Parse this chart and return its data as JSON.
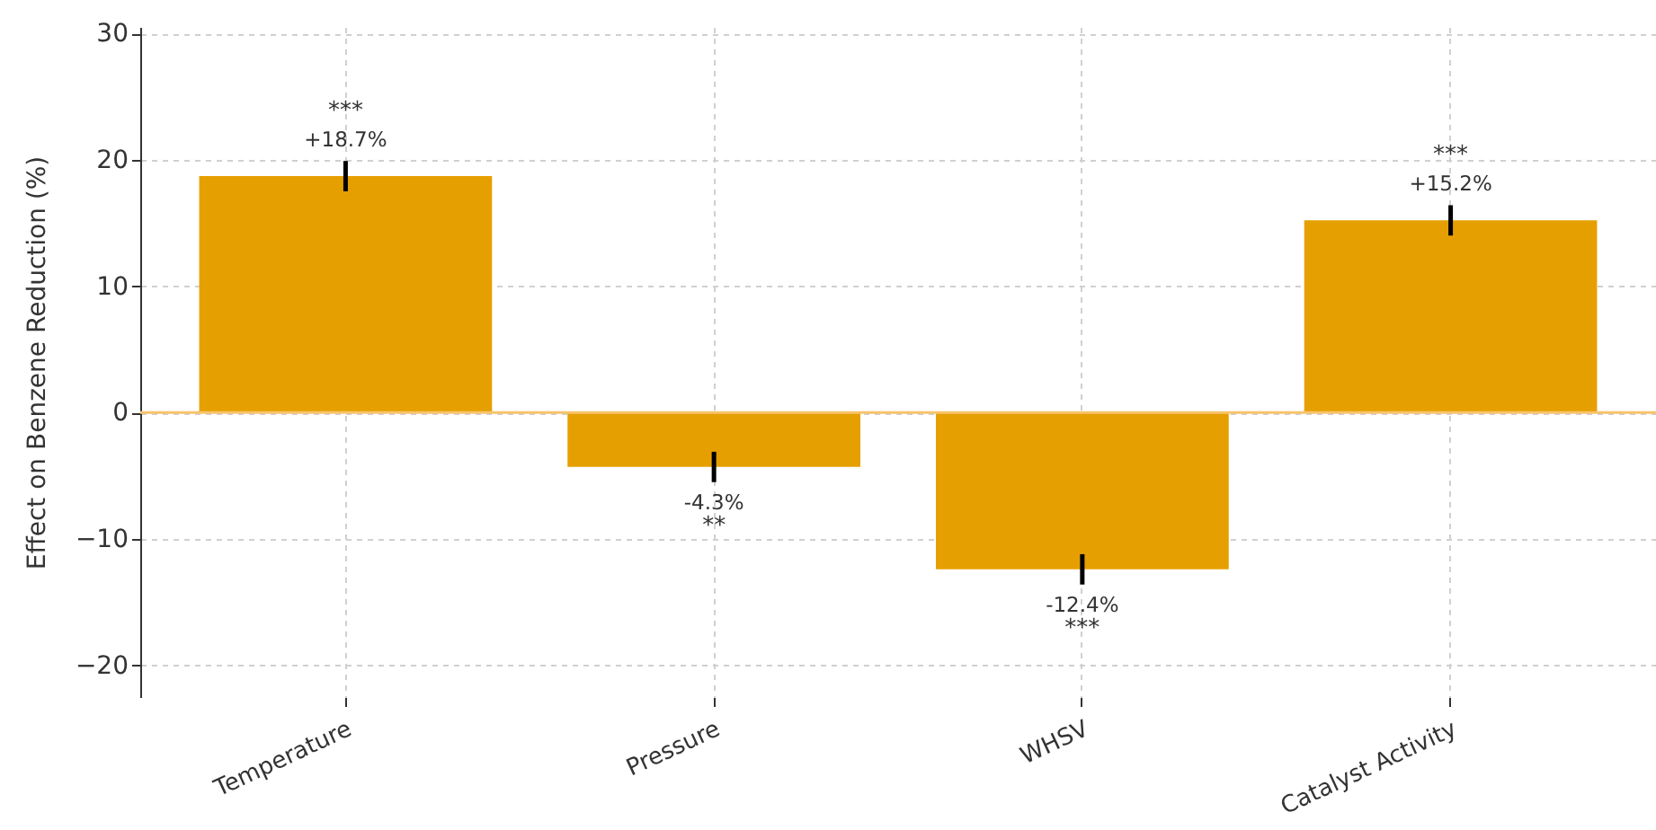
{
  "chart_data": {
    "type": "bar",
    "ylabel": "Effect on Benzene Reduction (%)",
    "categories": [
      "Temperature",
      "Pressure",
      "WHSV",
      "Catalyst Activity"
    ],
    "values": [
      18.7,
      -4.3,
      -12.4,
      15.2
    ],
    "color": "#e69f00",
    "errors": [
      1.2,
      1.2,
      1.2,
      1.2
    ],
    "value_labels": [
      "+18.7%",
      "-4.3%",
      "-12.4%",
      "+15.2%"
    ],
    "annotations": [
      "***",
      "**",
      "***",
      "***"
    ],
    "ref_lines": [
      {
        "axis": "y",
        "value": 0,
        "color": "#f7c46c"
      }
    ],
    "ylim": [
      -22.5,
      30.5
    ],
    "yticks": [
      -20,
      -10,
      0,
      10,
      20,
      30
    ],
    "grid": true
  }
}
